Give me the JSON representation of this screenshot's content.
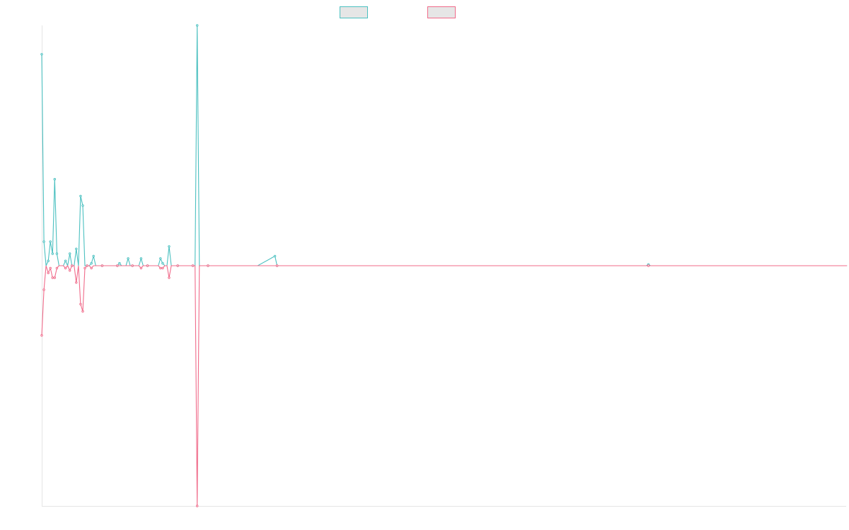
{
  "chart_data": {
    "type": "line",
    "title": "",
    "xlabel": "",
    "ylabel": "",
    "ylim": [
      -100,
      100
    ],
    "grid": false,
    "legend_position": "top-center",
    "x_count": 208,
    "series": [
      {
        "color": "#4bc0c0",
        "points": [
          [
            0,
            88
          ],
          [
            1,
            10
          ],
          [
            2,
            0
          ],
          [
            3,
            2
          ],
          [
            4,
            10
          ],
          [
            5,
            5
          ],
          [
            6,
            36
          ],
          [
            7,
            5
          ],
          [
            8,
            0
          ],
          [
            9,
            0
          ],
          [
            10,
            0
          ],
          [
            11,
            2
          ],
          [
            12,
            0
          ],
          [
            13,
            5
          ],
          [
            14,
            0
          ],
          [
            15,
            0
          ],
          [
            16,
            7
          ],
          [
            17,
            0
          ],
          [
            18,
            29
          ],
          [
            19,
            25
          ],
          [
            20,
            0
          ],
          [
            21,
            0
          ],
          [
            22,
            0
          ],
          [
            23,
            1
          ],
          [
            24,
            4
          ],
          [
            25,
            0
          ],
          [
            26,
            0
          ],
          [
            27,
            0
          ],
          [
            28,
            0
          ],
          [
            29,
            0
          ],
          [
            30,
            0
          ],
          [
            31,
            0
          ],
          [
            32,
            0
          ],
          [
            33,
            0
          ],
          [
            34,
            0
          ],
          [
            35,
            0
          ],
          [
            36,
            1
          ],
          [
            37,
            0
          ],
          [
            38,
            0
          ],
          [
            39,
            0
          ],
          [
            40,
            3
          ],
          [
            41,
            0
          ],
          [
            42,
            0
          ],
          [
            43,
            0
          ],
          [
            44,
            0
          ],
          [
            45,
            0
          ],
          [
            46,
            3
          ],
          [
            47,
            0
          ],
          [
            48,
            0
          ],
          [
            49,
            0
          ],
          [
            50,
            0
          ],
          [
            51,
            0
          ],
          [
            52,
            0
          ],
          [
            53,
            0
          ],
          [
            54,
            0
          ],
          [
            55,
            3
          ],
          [
            56,
            1
          ],
          [
            57,
            0
          ],
          [
            58,
            0
          ],
          [
            59,
            8
          ],
          [
            60,
            0
          ],
          [
            61,
            0
          ],
          [
            62,
            0
          ],
          [
            63,
            0
          ],
          [
            64,
            0
          ],
          [
            65,
            0
          ],
          [
            66,
            0
          ],
          [
            67,
            0
          ],
          [
            68,
            0
          ],
          [
            69,
            0
          ],
          [
            70,
            0
          ],
          [
            71,
            0
          ],
          [
            72,
            100
          ],
          [
            73,
            0
          ],
          [
            74,
            0
          ],
          [
            75,
            0
          ],
          [
            76,
            0
          ],
          [
            77,
            0
          ],
          [
            78,
            0
          ],
          [
            79,
            0
          ],
          [
            80,
            0
          ],
          [
            90,
            0
          ],
          [
            100,
            0
          ],
          [
            108,
            4
          ],
          [
            109,
            0
          ],
          [
            110,
            0
          ],
          [
            111,
            0
          ],
          [
            120,
            0
          ],
          [
            150,
            0
          ],
          [
            200,
            0
          ],
          [
            280,
            0
          ],
          [
            281,
            0.5
          ],
          [
            282,
            0
          ],
          [
            320,
            0
          ],
          [
            370,
            0
          ],
          [
            373,
            0
          ]
        ]
      },
      {
        "color": "#f06b8a",
        "points": [
          [
            0,
            -29
          ],
          [
            1,
            -10
          ],
          [
            2,
            0
          ],
          [
            3,
            -3
          ],
          [
            4,
            -1
          ],
          [
            5,
            -5
          ],
          [
            6,
            -5
          ],
          [
            7,
            -1
          ],
          [
            8,
            0
          ],
          [
            9,
            0
          ],
          [
            10,
            0
          ],
          [
            11,
            -1
          ],
          [
            12,
            0
          ],
          [
            13,
            -2
          ],
          [
            14,
            0
          ],
          [
            15,
            0
          ],
          [
            16,
            -7
          ],
          [
            17,
            0
          ],
          [
            18,
            -16
          ],
          [
            19,
            -19
          ],
          [
            20,
            -1
          ],
          [
            21,
            0
          ],
          [
            22,
            0
          ],
          [
            23,
            -1
          ],
          [
            24,
            0
          ],
          [
            25,
            0
          ],
          [
            26,
            0
          ],
          [
            27,
            0
          ],
          [
            28,
            0
          ],
          [
            29,
            0
          ],
          [
            30,
            0
          ],
          [
            31,
            0
          ],
          [
            32,
            0
          ],
          [
            33,
            0
          ],
          [
            34,
            0
          ],
          [
            35,
            0
          ],
          [
            36,
            0
          ],
          [
            37,
            0
          ],
          [
            38,
            0
          ],
          [
            39,
            0
          ],
          [
            40,
            0
          ],
          [
            41,
            0
          ],
          [
            42,
            0
          ],
          [
            43,
            0
          ],
          [
            44,
            0
          ],
          [
            45,
            0
          ],
          [
            46,
            -1
          ],
          [
            47,
            0
          ],
          [
            48,
            0
          ],
          [
            49,
            0
          ],
          [
            50,
            0
          ],
          [
            51,
            0
          ],
          [
            52,
            0
          ],
          [
            53,
            0
          ],
          [
            54,
            0
          ],
          [
            55,
            -1
          ],
          [
            56,
            -1
          ],
          [
            57,
            0
          ],
          [
            58,
            0
          ],
          [
            59,
            -5
          ],
          [
            60,
            0
          ],
          [
            61,
            0
          ],
          [
            62,
            0
          ],
          [
            63,
            0
          ],
          [
            64,
            0
          ],
          [
            65,
            0
          ],
          [
            66,
            0
          ],
          [
            67,
            0
          ],
          [
            68,
            0
          ],
          [
            69,
            0
          ],
          [
            70,
            0
          ],
          [
            71,
            0
          ],
          [
            72,
            -100
          ],
          [
            73,
            0
          ],
          [
            74,
            0
          ],
          [
            75,
            0
          ],
          [
            76,
            0
          ],
          [
            77,
            0
          ],
          [
            78,
            0
          ],
          [
            79,
            0
          ],
          [
            80,
            0
          ],
          [
            90,
            0
          ],
          [
            100,
            0
          ],
          [
            108,
            0
          ],
          [
            109,
            0
          ],
          [
            110,
            0
          ],
          [
            111,
            0
          ],
          [
            120,
            0
          ],
          [
            150,
            0
          ],
          [
            200,
            0
          ],
          [
            280,
            0
          ],
          [
            281,
            0
          ],
          [
            282,
            0
          ],
          [
            320,
            0
          ],
          [
            370,
            0
          ],
          [
            373,
            0
          ]
        ]
      }
    ]
  }
}
